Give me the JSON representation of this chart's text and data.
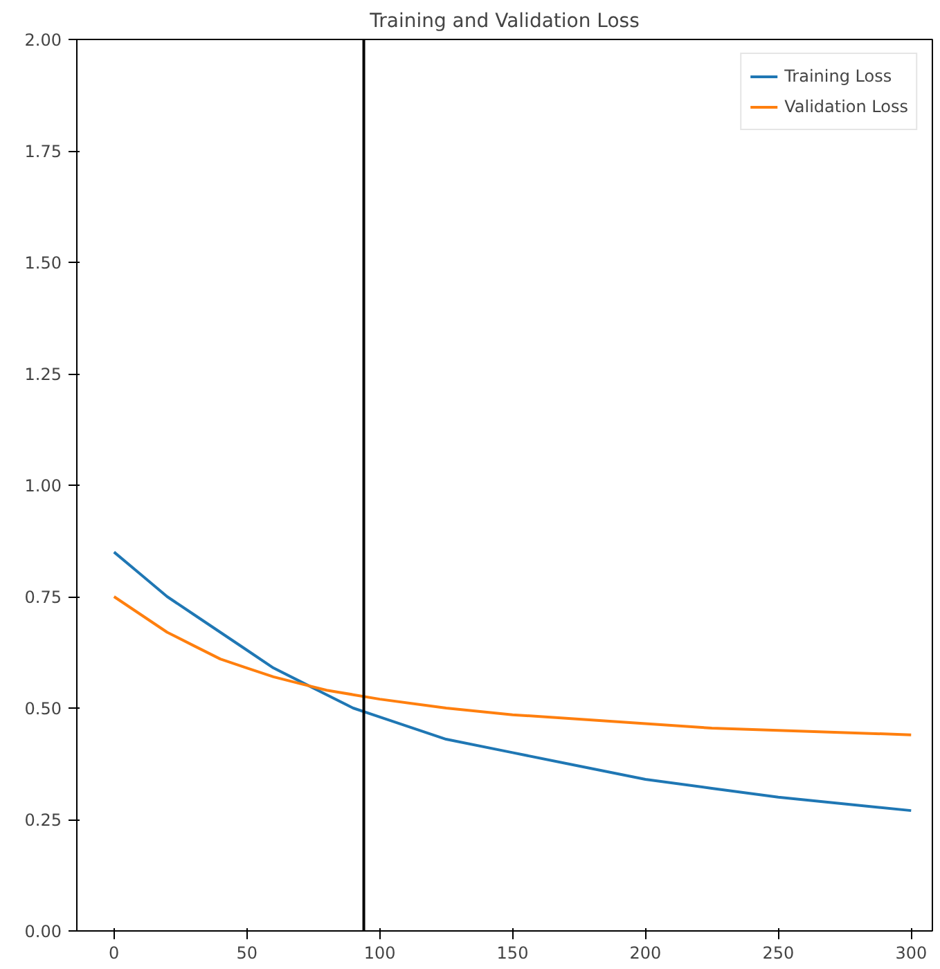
{
  "chart_data": {
    "type": "line",
    "title": "Training and Validation Loss",
    "x": [
      0,
      10,
      20,
      30,
      40,
      50,
      60,
      70,
      80,
      90,
      100,
      125,
      150,
      175,
      200,
      225,
      250,
      275,
      300
    ],
    "series": [
      {
        "name": "Training Loss",
        "color": "#1f77b4",
        "values": [
          0.85,
          0.8,
          0.75,
          0.71,
          0.67,
          0.63,
          0.59,
          0.56,
          0.53,
          0.5,
          0.48,
          0.43,
          0.4,
          0.37,
          0.34,
          0.32,
          0.3,
          0.285,
          0.27
        ]
      },
      {
        "name": "Validation Loss",
        "color": "#ff7f0e",
        "values": [
          0.75,
          0.71,
          0.67,
          0.64,
          0.61,
          0.59,
          0.57,
          0.555,
          0.54,
          0.53,
          0.52,
          0.5,
          0.485,
          0.475,
          0.465,
          0.455,
          0.45,
          0.445,
          0.44
        ]
      }
    ],
    "xlim": [
      -14,
      308
    ],
    "ylim": [
      0,
      2
    ],
    "xticks": [
      0,
      50,
      100,
      150,
      200,
      250,
      300
    ],
    "yticks": [
      {
        "value": 0,
        "label": "0.00"
      },
      {
        "value": 0.25,
        "label": "0.25"
      },
      {
        "value": 0.5,
        "label": "0.50"
      },
      {
        "value": 0.75,
        "label": "0.75"
      },
      {
        "value": 1,
        "label": "1.00"
      },
      {
        "value": 1.25,
        "label": "1.25"
      },
      {
        "value": 1.5,
        "label": "1.50"
      },
      {
        "value": 1.75,
        "label": "1.75"
      },
      {
        "value": 2,
        "label": "2.00"
      }
    ],
    "ref_lines": [
      {
        "axis": "x",
        "value": 94,
        "color": "#000000"
      }
    ],
    "legend": "top right",
    "grid": false
  }
}
